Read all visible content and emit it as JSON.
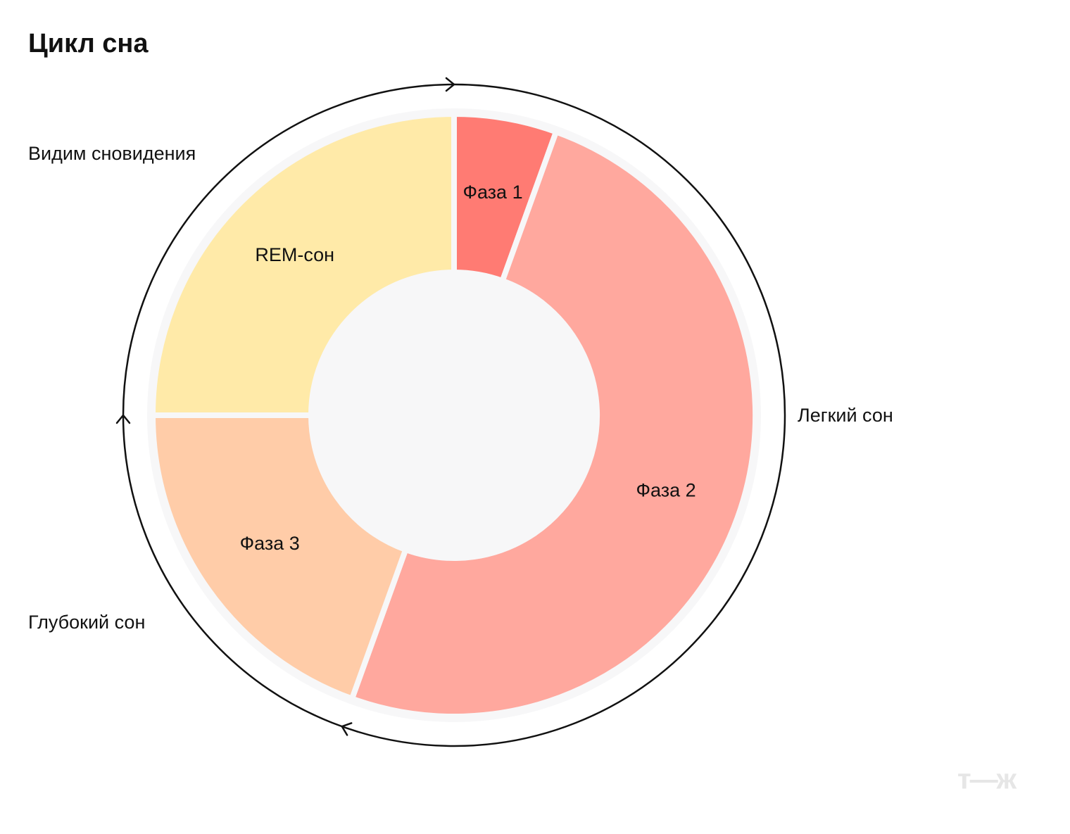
{
  "chart_data": {
    "type": "donut",
    "title": "Цикл сна",
    "categories": [
      "Фаза 1",
      "Фаза 2",
      "Фаза 3",
      "REM-сон"
    ],
    "values": [
      5.5,
      50,
      19.5,
      25
    ],
    "colors": [
      "#ff7b73",
      "#ffa89e",
      "#ffcca8",
      "#ffeaa8"
    ],
    "group_labels": [
      "Легкий сон",
      "Глубокий сон",
      "Видим сновидения"
    ],
    "watermark": "т—ж"
  }
}
